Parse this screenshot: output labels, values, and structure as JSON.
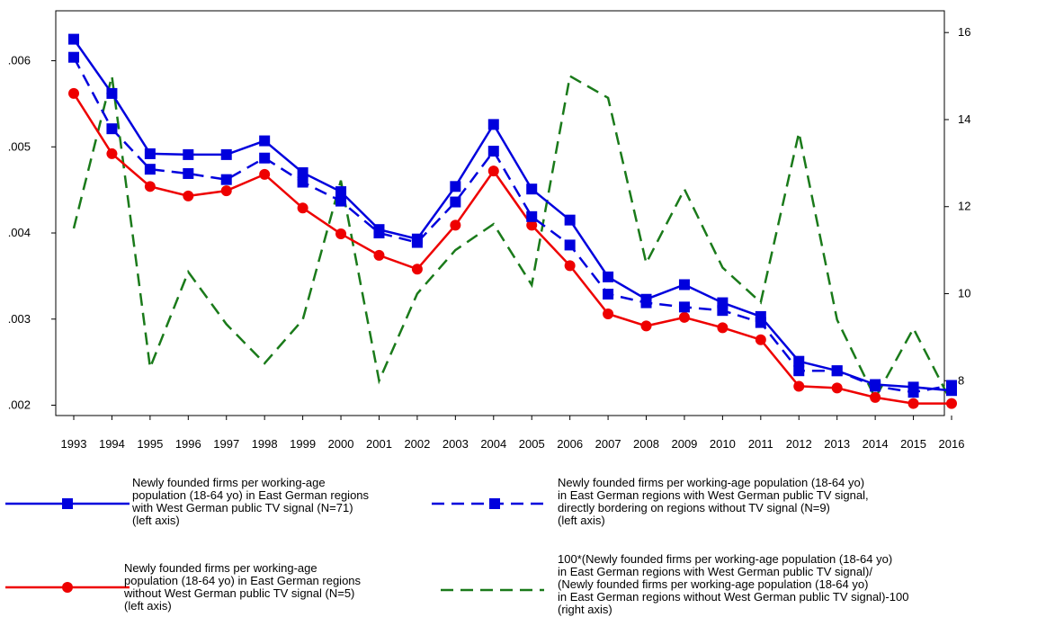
{
  "chart_data": {
    "type": "line",
    "x": [
      1993,
      1994,
      1995,
      1996,
      1997,
      1998,
      1999,
      2000,
      2001,
      2002,
      2003,
      2004,
      2005,
      2006,
      2007,
      2008,
      2009,
      2010,
      2011,
      2012,
      2013,
      2014,
      2015,
      2016
    ],
    "x_tick_labels": [
      "1993",
      "1994",
      "1995",
      "1996",
      "1997",
      "1998",
      "1999",
      "2000",
      "2001",
      "2002",
      "2003",
      "2004",
      "2005",
      "2006",
      "2007",
      "2008",
      "2009",
      "2010",
      "2011",
      "2012",
      "2013",
      "2014",
      "2015",
      "2016"
    ],
    "y_left": {
      "lim": [
        0.00188,
        0.00658
      ],
      "ticks": [
        0.002,
        0.003,
        0.004,
        0.005,
        0.006
      ],
      "tick_labels": [
        ".002",
        ".003",
        ".004",
        ".005",
        ".006"
      ]
    },
    "y_right": {
      "lim": [
        7.2,
        16.5
      ],
      "ticks": [
        8,
        10,
        12,
        14,
        16
      ],
      "tick_labels": [
        "8",
        "10",
        "12",
        "14",
        "16"
      ]
    },
    "grid": false,
    "legend_position": "bottom",
    "series": [
      {
        "name": "Newly founded firms per working-age population (18-64 yo) in East German regions with West German public TV signal (N=71) (left axis)",
        "legend_lines": [
          "Newly founded firms per working-age",
          "population (18-64 yo) in East German regions",
          "with West German public TV signal (N=71)",
          "(left axis)"
        ],
        "axis": "left",
        "color": "#0000dd",
        "dash": "solid",
        "marker": "square",
        "values": [
          0.00625,
          0.00562,
          0.00492,
          0.00491,
          0.00491,
          0.00507,
          0.0047,
          0.00448,
          0.00404,
          0.00393,
          0.00454,
          0.00526,
          0.00451,
          0.00415,
          0.00349,
          0.00323,
          0.0034,
          0.00319,
          0.00303,
          0.00251,
          0.0024,
          0.00224,
          0.00221,
          0.00217
        ]
      },
      {
        "name": "Newly founded firms per working-age population (18-64 yo) in East German regions with West German public TV signal, directly bordering on regions without TV signal (N=9) (left axis)",
        "legend_lines": [
          "Newly founded firms per working-age population (18-64 yo)",
          "in East German regions with West German public TV signal,",
          "directly bordering on regions without TV signal (N=9)",
          "(left axis)"
        ],
        "axis": "left",
        "color": "#0000dd",
        "dash": "dashed",
        "marker": "square",
        "values": [
          0.00604,
          0.00521,
          0.00474,
          0.00469,
          0.00462,
          0.00487,
          0.00459,
          0.00437,
          0.004,
          0.00389,
          0.00436,
          0.00495,
          0.00419,
          0.00386,
          0.00329,
          0.00319,
          0.00314,
          0.0031,
          0.00296,
          0.0024,
          0.0024,
          0.00222,
          0.00215,
          0.00223
        ]
      },
      {
        "name": "Newly founded firms per working-age population (18-64 yo) in East German regions without West German public TV signal (N=5) (left axis)",
        "legend_lines": [
          "Newly founded firms per working-age",
          "population (18-64 yo) in East German regions",
          "without West German public TV signal (N=5)",
          "(left axis)"
        ],
        "axis": "left",
        "color": "#ee0000",
        "dash": "solid",
        "marker": "circle",
        "values": [
          0.00562,
          0.00492,
          0.00454,
          0.00443,
          0.00449,
          0.00468,
          0.00429,
          0.00399,
          0.00374,
          0.00358,
          0.00409,
          0.00472,
          0.00409,
          0.00362,
          0.00306,
          0.00292,
          0.00302,
          0.0029,
          0.00276,
          0.00222,
          0.0022,
          0.00209,
          0.00202,
          0.00202
        ]
      },
      {
        "name": "100*(Newly founded firms per working-age population (18-64 yo) in East German regions with West German public TV signal)/ (Newly founded firms per working-age population (18-64 yo) in East German regions without West German public TV signal)-100 (right axis)",
        "legend_lines": [
          "100*(Newly founded firms per working-age population (18-64 yo)",
          "in East German regions with West German public TV signal)/",
          "(Newly founded firms per working-age population (18-64 yo)",
          "in East German regions without West German public TV signal)-100",
          "(right axis)"
        ],
        "axis": "right",
        "color": "#1a7a1a",
        "dash": "dashed",
        "marker": "none",
        "values": [
          11.5,
          15.0,
          8.3,
          10.5,
          9.3,
          8.4,
          9.4,
          12.6,
          8.0,
          10.0,
          11.0,
          11.6,
          10.2,
          15.0,
          14.5,
          10.7,
          12.4,
          10.6,
          9.8,
          13.7,
          9.4,
          7.6,
          9.2,
          7.5
        ]
      }
    ]
  }
}
